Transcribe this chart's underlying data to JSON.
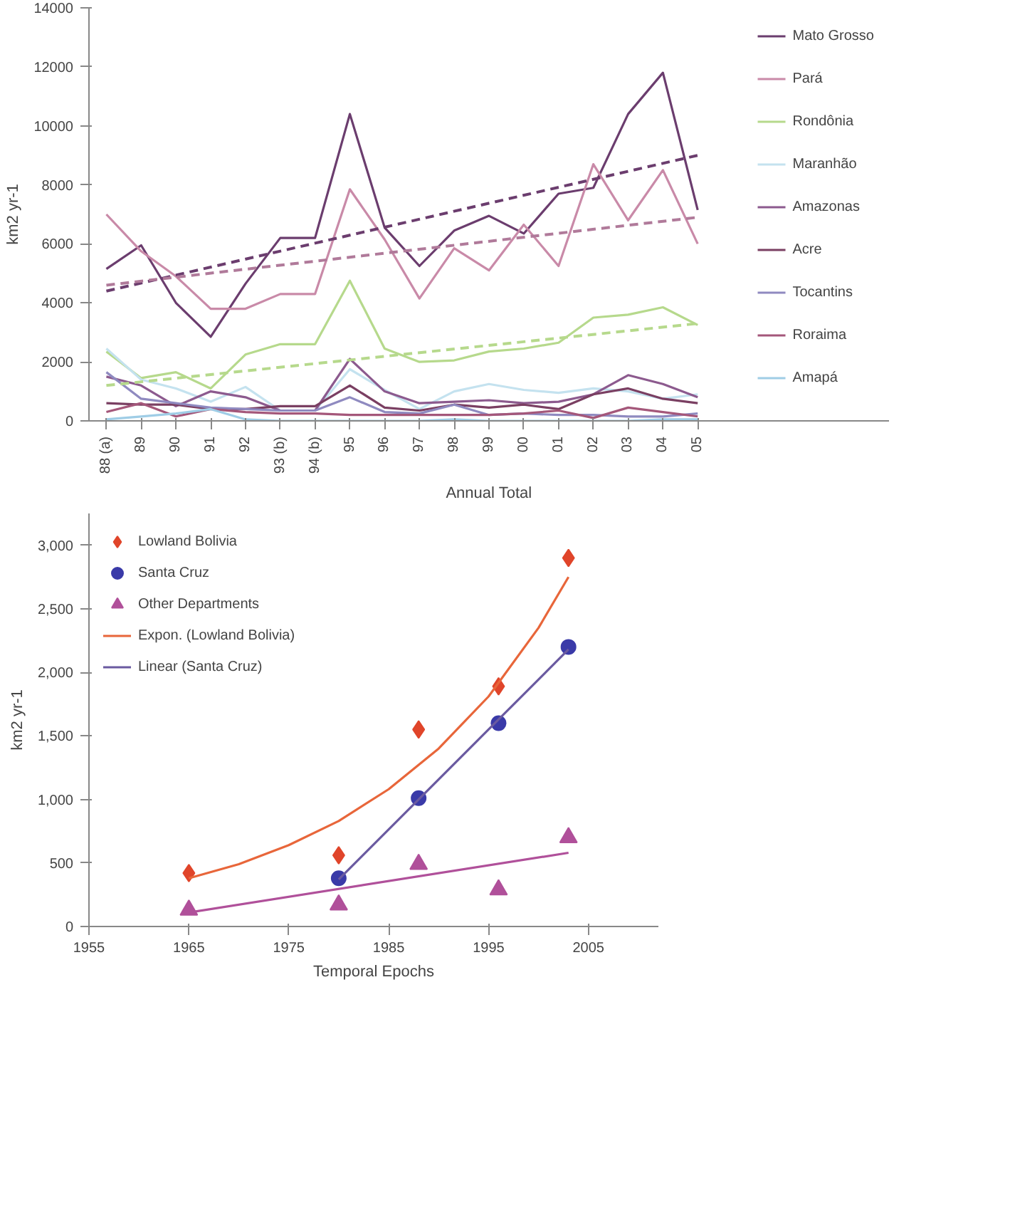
{
  "chart_data": [
    {
      "type": "line",
      "xlabel": "Annual Total",
      "ylabel": "km2 yr-1",
      "categories": [
        "88 (a)",
        "89",
        "90",
        "91",
        "92",
        "93 (b)",
        "94 (b)",
        "95",
        "96",
        "97",
        "98",
        "99",
        "00",
        "01",
        "02",
        "03",
        "04",
        "05"
      ],
      "ylim": [
        0,
        14000
      ],
      "yticks": [
        0,
        2000,
        4000,
        6000,
        8000,
        10000,
        12000,
        14000
      ],
      "grid": false,
      "legend": "right",
      "marker": "none",
      "line_style": "solid",
      "series": [
        {
          "name": "Mato Grosso",
          "color": "#6b3d6e",
          "values": [
            5150,
            5950,
            4000,
            2850,
            4650,
            6200,
            6200,
            10400,
            6550,
            5250,
            6450,
            6950,
            6350,
            7700,
            7900,
            10400,
            11800,
            7150
          ]
        },
        {
          "name": "Pará",
          "color": "#c98aa8",
          "values": [
            7000,
            5750,
            4900,
            3800,
            3800,
            4300,
            4300,
            7850,
            6150,
            4150,
            5850,
            5100,
            6650,
            5250,
            8700,
            6800,
            8500,
            6000
          ]
        },
        {
          "name": "Rondônia",
          "color": "#b6d98c",
          "values": [
            2350,
            1450,
            1650,
            1100,
            2250,
            2600,
            2600,
            4750,
            2450,
            2000,
            2050,
            2350,
            2450,
            2650,
            3500,
            3600,
            3850,
            3250
          ]
        },
        {
          "name": "Maranhão",
          "color": "#c4e2ef",
          "values": [
            2450,
            1400,
            1100,
            650,
            1150,
            350,
            350,
            1750,
            1050,
            400,
            1000,
            1250,
            1050,
            950,
            1100,
            1000,
            750,
            900
          ]
        },
        {
          "name": "Amazonas",
          "color": "#8c5a8e",
          "values": [
            1500,
            1200,
            500,
            1000,
            800,
            350,
            350,
            2100,
            1000,
            600,
            650,
            700,
            600,
            650,
            900,
            1550,
            1250,
            800
          ]
        },
        {
          "name": "Acre",
          "color": "#7a3f62",
          "values": [
            600,
            550,
            550,
            400,
            400,
            500,
            500,
            1200,
            450,
            350,
            550,
            450,
            550,
            400,
            900,
            1100,
            750,
            600
          ]
        },
        {
          "name": "Tocantins",
          "color": "#8f8ac0",
          "values": [
            1650,
            750,
            600,
            450,
            400,
            350,
            350,
            800,
            300,
            250,
            550,
            200,
            250,
            200,
            200,
            150,
            150,
            250
          ]
        },
        {
          "name": "Roraima",
          "color": "#a4577a",
          "values": [
            300,
            600,
            150,
            400,
            300,
            250,
            250,
            200,
            200,
            200,
            200,
            200,
            250,
            350,
            100,
            450,
            300,
            150
          ]
        },
        {
          "name": "Amapá",
          "color": "#9fcde6",
          "values": [
            50,
            150,
            250,
            400,
            50,
            0,
            0,
            0,
            0,
            0,
            50,
            0,
            0,
            0,
            0,
            0,
            50,
            50
          ]
        },
        {
          "type": "line",
          "line_style": "dashed",
          "color": "#6b3d6e",
          "x": [
            "88 (a)",
            "05"
          ],
          "values": [
            4400,
            9000
          ]
        },
        {
          "type": "line",
          "line_style": "dashed",
          "color": "#b07a9a",
          "x": [
            "88 (a)",
            "05"
          ],
          "values": [
            4600,
            6900
          ]
        },
        {
          "type": "line",
          "line_style": "dashed",
          "color": "#b6d98c",
          "x": [
            "88 (a)",
            "05"
          ],
          "values": [
            1200,
            3300
          ]
        }
      ]
    },
    {
      "type": "scatter",
      "xlabel": "Temporal Epochs",
      "ylabel": "km2 yr-1",
      "xlim": [
        1955,
        2012
      ],
      "xticks": [
        1955,
        1965,
        1975,
        1985,
        1995,
        2005
      ],
      "ylim": [
        0,
        3250
      ],
      "yticks": [
        {
          "value": 0,
          "label": "0"
        },
        {
          "value": 500,
          "label": "500"
        },
        {
          "value": 1000,
          "label": "1,000"
        },
        {
          "value": 1500,
          "label": "1,500"
        },
        {
          "value": 2000,
          "label": "2,000"
        },
        {
          "value": 2500,
          "label": "2,500"
        },
        {
          "value": 3000,
          "label": "3,000"
        }
      ],
      "grid": false,
      "legend": "top left",
      "series": [
        {
          "name": "Lowland Bolivia",
          "color": "#e0452a",
          "marker": "diamond",
          "x": [
            1965,
            1980,
            1988,
            1996,
            2003
          ],
          "values": [
            420,
            560,
            1550,
            1890,
            2900
          ]
        },
        {
          "name": "Santa Cruz",
          "color": "#3a3aa8",
          "marker": "circle",
          "x": [
            1980,
            1988,
            1996,
            2003
          ],
          "values": [
            380,
            1010,
            1600,
            2200
          ]
        },
        {
          "name": "Other Departments",
          "color": "#b0509a",
          "marker": "triangle",
          "x": [
            1965,
            1980,
            1988,
            1996,
            2003
          ],
          "values": [
            130,
            170,
            490,
            290,
            700
          ]
        },
        {
          "name": "Expon. (Lowland Bolivia)",
          "type": "line",
          "color": "#e8663a",
          "line_style": "solid",
          "x": [
            1965,
            1970,
            1975,
            1980,
            1985,
            1990,
            1995,
            2000,
            2003
          ],
          "values": [
            380,
            490,
            640,
            830,
            1080,
            1400,
            1810,
            2350,
            2750
          ]
        },
        {
          "name": "Linear (Santa Cruz)",
          "type": "line",
          "color": "#6a5aa0",
          "line_style": "solid",
          "x": [
            1980,
            2003
          ],
          "values": [
            370,
            2180
          ]
        },
        {
          "type": "line",
          "color": "#b0509a",
          "line_style": "solid",
          "x": [
            1965,
            2003
          ],
          "values": [
            110,
            580
          ]
        }
      ]
    }
  ]
}
